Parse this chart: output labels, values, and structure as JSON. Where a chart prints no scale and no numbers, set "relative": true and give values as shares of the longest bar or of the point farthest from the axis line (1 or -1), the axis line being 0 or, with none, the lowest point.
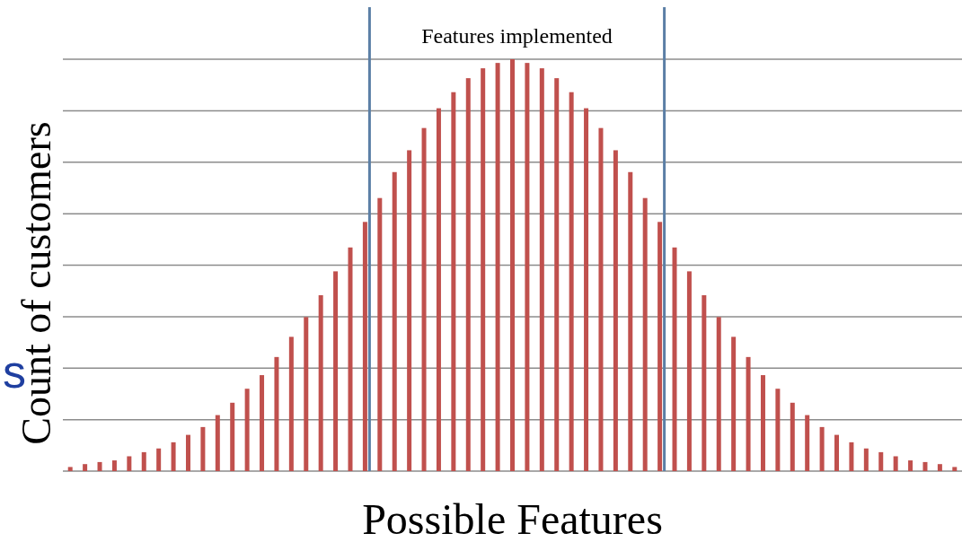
{
  "chart_data": {
    "type": "bar",
    "relative": true,
    "xlabel": "Possible Features",
    "ylabel": "Count of customers",
    "categories": [
      null,
      null,
      null,
      null,
      null,
      null,
      null,
      null,
      null,
      null,
      null,
      null,
      null,
      null,
      null,
      null,
      null,
      null,
      null,
      null,
      null,
      null,
      null,
      null,
      null,
      null,
      null,
      null,
      null,
      null,
      null,
      null,
      null,
      null,
      null,
      null,
      null,
      null,
      null,
      null,
      null,
      null,
      null,
      null,
      null,
      null,
      null,
      null,
      null,
      null,
      null,
      null,
      null,
      null,
      null,
      null,
      null,
      null,
      null,
      null,
      null
    ],
    "series": [
      {
        "color": "#c0504d",
        "values": [
          0.01,
          0.017,
          0.022,
          0.026,
          0.036,
          0.046,
          0.055,
          0.07,
          0.088,
          0.107,
          0.136,
          0.166,
          0.2,
          0.233,
          0.277,
          0.326,
          0.374,
          0.427,
          0.485,
          0.543,
          0.605,
          0.663,
          0.726,
          0.779,
          0.833,
          0.881,
          0.92,
          0.954,
          0.978,
          0.991,
          1,
          0.991,
          0.978,
          0.954,
          0.92,
          0.881,
          0.833,
          0.779,
          0.726,
          0.663,
          0.605,
          0.543,
          0.485,
          0.427,
          0.374,
          0.326,
          0.277,
          0.233,
          0.2,
          0.166,
          0.136,
          0.107,
          0.088,
          0.07,
          0.055,
          0.046,
          0.036,
          0.026,
          0.022,
          0.017,
          0.01
        ]
      }
    ],
    "annotations": [
      "Features implemented",
      "s"
    ],
    "grid": "y"
  }
}
